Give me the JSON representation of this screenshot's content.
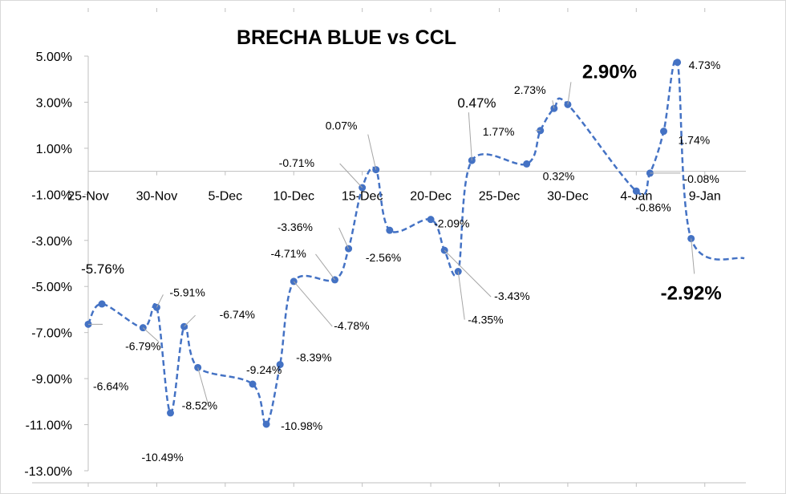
{
  "chart_data": {
    "type": "line",
    "title": "BRECHA BLUE vs CCL",
    "xlabel": "",
    "ylabel": "",
    "ylim": [
      -13,
      5
    ],
    "y_ticks": [
      "5.00%",
      "3.00%",
      "1.00%",
      "-1.00%",
      "-3.00%",
      "-5.00%",
      "-7.00%",
      "-9.00%",
      "-11.00%",
      "-13.00%"
    ],
    "x_start": "2020-11-25",
    "x_end": "2021-01-12",
    "x_ticks": [
      {
        "date": "2020-11-25",
        "label": "25-Nov"
      },
      {
        "date": "2020-11-30",
        "label": "30-Nov"
      },
      {
        "date": "2020-12-05",
        "label": "5-Dec"
      },
      {
        "date": "2020-12-10",
        "label": "10-Dec"
      },
      {
        "date": "2020-12-15",
        "label": "15-Dec"
      },
      {
        "date": "2020-12-20",
        "label": "20-Dec"
      },
      {
        "date": "2020-12-25",
        "label": "25-Dec"
      },
      {
        "date": "2020-12-30",
        "label": "30-Dec"
      },
      {
        "date": "2021-01-04",
        "label": "4-Jan"
      },
      {
        "date": "2021-01-09",
        "label": "9-Jan"
      }
    ],
    "grid": false,
    "legend": "none",
    "colors": {
      "series": "#4472C4",
      "axis": "#bfbfbf",
      "leader": "#a6a6a6"
    },
    "series": [
      {
        "points": [
          {
            "x": "2020-11-25",
            "y": -6.64,
            "label": "-6.64%"
          },
          {
            "x": "2020-11-26",
            "y": -5.76,
            "label": "-5.76%"
          },
          {
            "x": "2020-11-29",
            "y": -6.79,
            "label": "-6.79%"
          },
          {
            "x": "2020-11-30",
            "y": -5.91,
            "label": "-5.91%"
          },
          {
            "x": "2020-12-01",
            "y": -10.49,
            "label": "-10.49%"
          },
          {
            "x": "2020-12-02",
            "y": -6.74,
            "label": "-6.74%"
          },
          {
            "x": "2020-12-03",
            "y": -8.52,
            "label": "-8.52%"
          },
          {
            "x": "2020-12-07",
            "y": -9.24,
            "label": "-9.24%"
          },
          {
            "x": "2020-12-08",
            "y": -10.98,
            "label": "-10.98%"
          },
          {
            "x": "2020-12-09",
            "y": -8.39,
            "label": "-8.39%"
          },
          {
            "x": "2020-12-10",
            "y": -4.78,
            "label": "-4.78%"
          },
          {
            "x": "2020-12-13",
            "y": -4.71,
            "label": "-4.71%"
          },
          {
            "x": "2020-12-14",
            "y": -3.36,
            "label": "-3.36%"
          },
          {
            "x": "2020-12-15",
            "y": -0.71,
            "label": "-0.71%"
          },
          {
            "x": "2020-12-16",
            "y": 0.07,
            "label": "0.07%"
          },
          {
            "x": "2020-12-17",
            "y": -2.56,
            "label": "-2.56%"
          },
          {
            "x": "2020-12-20",
            "y": -2.09,
            "label": "-2.09%"
          },
          {
            "x": "2020-12-21",
            "y": -3.43,
            "label": "-3.43%"
          },
          {
            "x": "2020-12-22",
            "y": -4.35,
            "label": "-4.35%"
          },
          {
            "x": "2020-12-23",
            "y": 0.47,
            "label": "0.47%"
          },
          {
            "x": "2020-12-27",
            "y": 0.32,
            "label": "0.32%"
          },
          {
            "x": "2020-12-28",
            "y": 1.77,
            "label": "1.77%"
          },
          {
            "x": "2020-12-29",
            "y": 2.73,
            "label": "2.73%"
          },
          {
            "x": "2020-12-30",
            "y": 2.9,
            "label": "2.90%"
          },
          {
            "x": "2021-01-04",
            "y": -0.86,
            "label": "-0.86%"
          },
          {
            "x": "2021-01-05",
            "y": -0.08,
            "label": "-0.08%"
          },
          {
            "x": "2021-01-06",
            "y": 1.74,
            "label": "1.74%"
          },
          {
            "x": "2021-01-07",
            "y": 4.73,
            "label": "4.73%"
          },
          {
            "x": "2021-01-08",
            "y": -2.92,
            "label": "-2.92%"
          }
        ]
      }
    ]
  }
}
